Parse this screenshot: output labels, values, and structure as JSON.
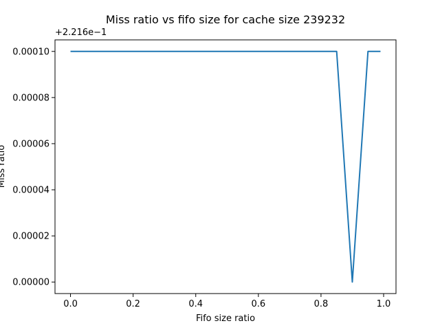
{
  "chart_data": {
    "type": "line",
    "title": "Miss ratio vs fifo size for cache size 239232",
    "xlabel": "Fifo size ratio",
    "ylabel": "Miss ratio",
    "y_offset_label": "+2.216e−1",
    "xlim": [
      -0.0495,
      1.0395
    ],
    "ylim": [
      -5e-06,
      0.000105
    ],
    "x_ticks": [
      0.0,
      0.2,
      0.4,
      0.6,
      0.8,
      1.0
    ],
    "x_tick_labels": [
      "0.0",
      "0.2",
      "0.4",
      "0.6",
      "0.8",
      "1.0"
    ],
    "y_ticks": [
      0.0,
      2e-05,
      4e-05,
      6e-05,
      8e-05,
      0.0001
    ],
    "y_tick_labels": [
      "0.00000",
      "0.00002",
      "0.00004",
      "0.00006",
      "0.00008",
      "0.00010"
    ],
    "grid": false,
    "series": [
      {
        "color": "#1f77b4",
        "x": [
          0.0,
          0.05,
          0.1,
          0.15,
          0.2,
          0.25,
          0.3,
          0.35,
          0.4,
          0.45,
          0.5,
          0.55,
          0.6,
          0.65,
          0.7,
          0.75,
          0.8,
          0.85,
          0.9,
          0.95,
          0.99
        ],
        "y": [
          0.0001,
          0.0001,
          0.0001,
          0.0001,
          0.0001,
          0.0001,
          0.0001,
          0.0001,
          0.0001,
          0.0001,
          0.0001,
          0.0001,
          0.0001,
          0.0001,
          0.0001,
          0.0001,
          0.0001,
          0.0001,
          0.0,
          0.0001,
          0.0001
        ]
      }
    ]
  }
}
